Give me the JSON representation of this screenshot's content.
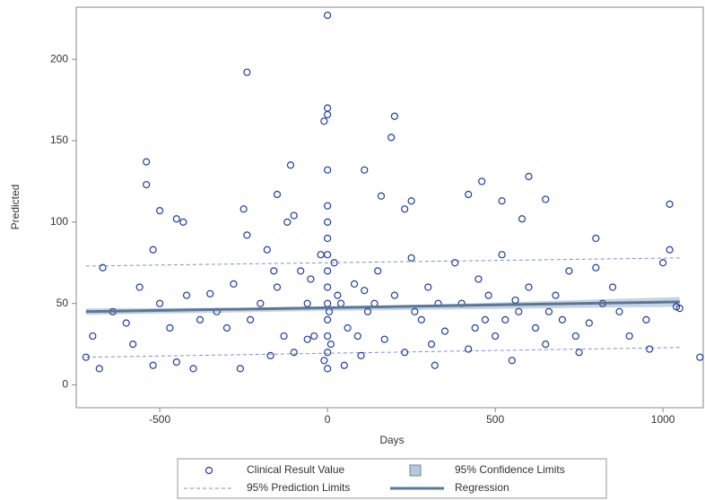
{
  "chart_data": {
    "type": "scatter",
    "x_label": "Days",
    "y_label": "Predicted",
    "xlim": [
      -749,
      1120
    ],
    "ylim": [
      -14,
      232
    ],
    "xticks": [
      -500,
      0,
      500,
      1000
    ],
    "yticks": [
      0,
      50,
      100,
      150,
      200
    ],
    "series": [
      {
        "type": "scatter",
        "name": "Clinical Result Value",
        "color": "#1f3d99",
        "x": [
          0,
          -240,
          -10,
          0,
          0,
          200,
          190,
          -540,
          -110,
          110,
          0,
          -540,
          600,
          460,
          420,
          160,
          -150,
          -250,
          -500,
          -450,
          -430,
          -240,
          230,
          250,
          520,
          650,
          580,
          1020,
          800,
          -520,
          0,
          0,
          0,
          -120,
          -100,
          -670,
          -700,
          -680,
          -720,
          -600,
          -560,
          -520,
          -450,
          -400,
          -380,
          -350,
          -300,
          -280,
          -260,
          -200,
          -180,
          -150,
          -130,
          -100,
          -80,
          -60,
          -40,
          -20,
          -10,
          0,
          0,
          0,
          0,
          0,
          0,
          0,
          0,
          5,
          10,
          20,
          30,
          50,
          60,
          80,
          100,
          120,
          150,
          170,
          200,
          230,
          250,
          280,
          300,
          320,
          350,
          380,
          400,
          420,
          450,
          470,
          500,
          520,
          550,
          570,
          600,
          620,
          650,
          680,
          700,
          720,
          750,
          780,
          800,
          820,
          850,
          900,
          950,
          1000,
          1020,
          1040,
          1050,
          1110,
          -640,
          -580,
          -500,
          -470,
          -420,
          -330,
          -230,
          -170,
          -50,
          40,
          90,
          140,
          260,
          330,
          440,
          480,
          530,
          660,
          740,
          870,
          -160,
          -60,
          110,
          310,
          560,
          960
        ],
        "y": [
          227,
          192,
          162,
          170,
          166,
          165,
          152,
          137,
          135,
          132,
          132,
          123,
          128,
          125,
          117,
          116,
          117,
          108,
          107,
          102,
          100,
          92,
          108,
          113,
          113,
          114,
          102,
          111,
          90,
          83,
          110,
          100,
          90,
          100,
          104,
          72,
          30,
          10,
          17,
          38,
          60,
          12,
          14,
          10,
          40,
          56,
          35,
          62,
          10,
          50,
          83,
          60,
          30,
          20,
          70,
          50,
          30,
          80,
          15,
          10,
          20,
          30,
          40,
          50,
          60,
          70,
          80,
          45,
          25,
          75,
          55,
          12,
          35,
          62,
          18,
          45,
          70,
          28,
          55,
          20,
          78,
          40,
          60,
          12,
          33,
          75,
          50,
          22,
          65,
          40,
          30,
          80,
          15,
          45,
          60,
          35,
          25,
          55,
          40,
          70,
          20,
          38,
          72,
          50,
          60,
          30,
          40,
          75,
          83,
          48,
          47,
          17,
          45,
          25,
          50,
          35,
          55,
          45,
          40,
          18,
          65,
          50,
          30,
          50,
          45,
          50,
          35,
          55,
          40,
          45,
          30,
          45,
          70,
          28,
          58,
          25,
          52,
          22
        ]
      },
      {
        "type": "band",
        "name": "95% Confidence Limits",
        "color": "#b8c8dc",
        "x": [
          -720,
          0,
          1050
        ],
        "lower": [
          43,
          45.5,
          48
        ],
        "upper": [
          47,
          47.5,
          54
        ]
      },
      {
        "type": "dashed",
        "name": "95% Prediction Limits",
        "color": "#7f8fcf",
        "x": [
          -720,
          1050
        ],
        "lower": [
          17,
          23
        ],
        "upper": [
          73,
          78
        ]
      },
      {
        "type": "line",
        "name": "Regression",
        "color": "#5b7796",
        "x": [
          -720,
          1050
        ],
        "y": [
          45,
          51
        ]
      }
    ]
  }
}
